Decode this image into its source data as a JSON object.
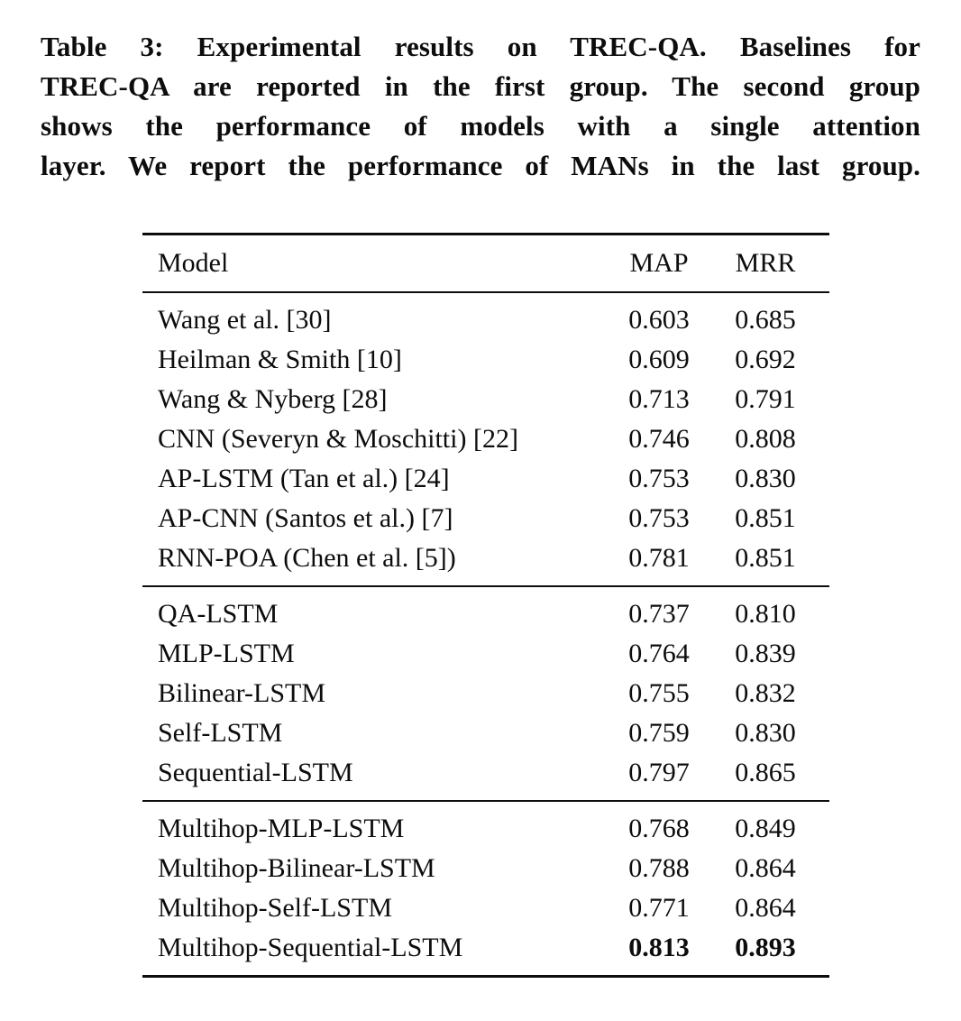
{
  "colors": {
    "background": "#ffffff",
    "text": "#0d0d0d"
  },
  "caption": {
    "lines": [
      "Table 3: Experimental results on TREC-QA. Baselines for",
      "TREC-QA are reported in the first group. The second group",
      "shows the performance of models with a single attention",
      "layer. We report the performance of MANs in the last group."
    ]
  },
  "table": {
    "headers": [
      "Model",
      "MAP",
      "MRR"
    ],
    "groups": [
      {
        "rows": [
          {
            "model": "Wang et al. [30]",
            "map": "0.603",
            "mrr": "0.685",
            "bold": false
          },
          {
            "model": "Heilman & Smith [10]",
            "map": "0.609",
            "mrr": "0.692",
            "bold": false
          },
          {
            "model": "Wang & Nyberg [28]",
            "map": "0.713",
            "mrr": "0.791",
            "bold": false
          },
          {
            "model": "CNN (Severyn & Moschitti) [22]",
            "map": "0.746",
            "mrr": "0.808",
            "bold": false
          },
          {
            "model": "AP-LSTM (Tan et al.) [24]",
            "map": "0.753",
            "mrr": "0.830",
            "bold": false
          },
          {
            "model": "AP-CNN (Santos et al.) [7]",
            "map": "0.753",
            "mrr": "0.851",
            "bold": false
          },
          {
            "model": "RNN-POA (Chen et al. [5])",
            "map": "0.781",
            "mrr": "0.851",
            "bold": false
          }
        ]
      },
      {
        "rows": [
          {
            "model": "QA-LSTM",
            "map": "0.737",
            "mrr": "0.810",
            "bold": false
          },
          {
            "model": "MLP-LSTM",
            "map": "0.764",
            "mrr": "0.839",
            "bold": false
          },
          {
            "model": "Bilinear-LSTM",
            "map": "0.755",
            "mrr": "0.832",
            "bold": false
          },
          {
            "model": "Self-LSTM",
            "map": "0.759",
            "mrr": "0.830",
            "bold": false
          },
          {
            "model": "Sequential-LSTM",
            "map": "0.797",
            "mrr": "0.865",
            "bold": false
          }
        ]
      },
      {
        "rows": [
          {
            "model": "Multihop-MLP-LSTM",
            "map": "0.768",
            "mrr": "0.849",
            "bold": false
          },
          {
            "model": "Multihop-Bilinear-LSTM",
            "map": "0.788",
            "mrr": "0.864",
            "bold": false
          },
          {
            "model": "Multihop-Self-LSTM",
            "map": "0.771",
            "mrr": "0.864",
            "bold": false
          },
          {
            "model": "Multihop-Sequential-LSTM",
            "map": "0.813",
            "mrr": "0.893",
            "bold": true
          }
        ]
      }
    ]
  }
}
